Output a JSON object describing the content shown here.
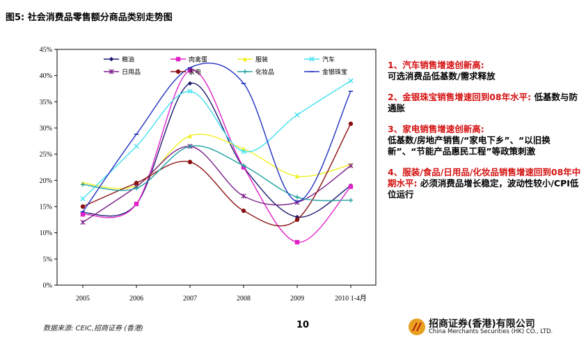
{
  "figure_title": "图5: 社会消费品零售额分商品类别走势图",
  "notes": [
    {
      "highlight": "1、汽车销售增速创新高:",
      "body": "可选消费品低基数/需求释放"
    },
    {
      "highlight": "2、金银珠宝销售增速回到08年水平:",
      "body": "低基数与防通胀"
    },
    {
      "highlight": "3、家电销售增速创新高:",
      "body": "低基数/房地产销售/“家电下乡”、“以旧换新”、“节能产品惠民工程”等政策刺激"
    },
    {
      "highlight": "4、服装/食品/日用品/化妆品销售增速回到08年中期水平:",
      "body": "必须消费品增长稳定，波动性较小/CPI低位运行"
    }
  ],
  "footer": {
    "source": "数据来源: CEIC,招商证券 (香港)",
    "page_number": "10",
    "company_cn": "招商证券(香港)有限公司",
    "company_en": "China Merchants Securities (HK) CO., LTD."
  },
  "chart_data": {
    "type": "line",
    "title": "",
    "xlabel": "",
    "ylabel": "",
    "categories": [
      "2005",
      "2006",
      "2007",
      "2008",
      "2009",
      "2010 1-4月"
    ],
    "ylim": [
      0,
      45
    ],
    "yticks": [
      "0%",
      "5%",
      "10%",
      "15%",
      "20%",
      "25%",
      "30%",
      "35%",
      "40%",
      "45%"
    ],
    "grid": false,
    "legend_position": "top",
    "series": [
      {
        "name": "粮油",
        "color": "#1a1a6e",
        "marker": "diamond",
        "values": [
          13.8,
          15.5,
          38.5,
          22.5,
          13.0,
          19.0
        ]
      },
      {
        "name": "肉禽蛋",
        "color": "#e020c8",
        "marker": "square",
        "values": [
          13.5,
          15.5,
          41.0,
          22.5,
          8.2,
          18.8
        ]
      },
      {
        "name": "服装",
        "color": "#f0f020",
        "marker": "triangle",
        "values": [
          19.5,
          19.0,
          28.5,
          26.0,
          20.8,
          23.0
        ]
      },
      {
        "name": "汽车",
        "color": "#40e0f0",
        "marker": "x",
        "values": [
          16.5,
          26.5,
          37.0,
          25.5,
          32.5,
          39.0
        ]
      },
      {
        "name": "日用品",
        "color": "#7a1f8a",
        "marker": "star",
        "values": [
          12.0,
          18.8,
          26.5,
          17.0,
          15.8,
          22.8
        ]
      },
      {
        "name": "家电",
        "color": "#8a1010",
        "marker": "circle",
        "values": [
          15.0,
          19.5,
          23.5,
          14.2,
          12.5,
          30.8
        ]
      },
      {
        "name": "化妆品",
        "color": "#20a0a0",
        "marker": "plus",
        "values": [
          19.2,
          18.5,
          26.5,
          22.8,
          16.8,
          16.2
        ]
      },
      {
        "name": "金银珠宝",
        "color": "#2030c0",
        "marker": "dash",
        "values": [
          14.0,
          28.8,
          41.5,
          38.5,
          16.0,
          37.0
        ]
      }
    ]
  }
}
